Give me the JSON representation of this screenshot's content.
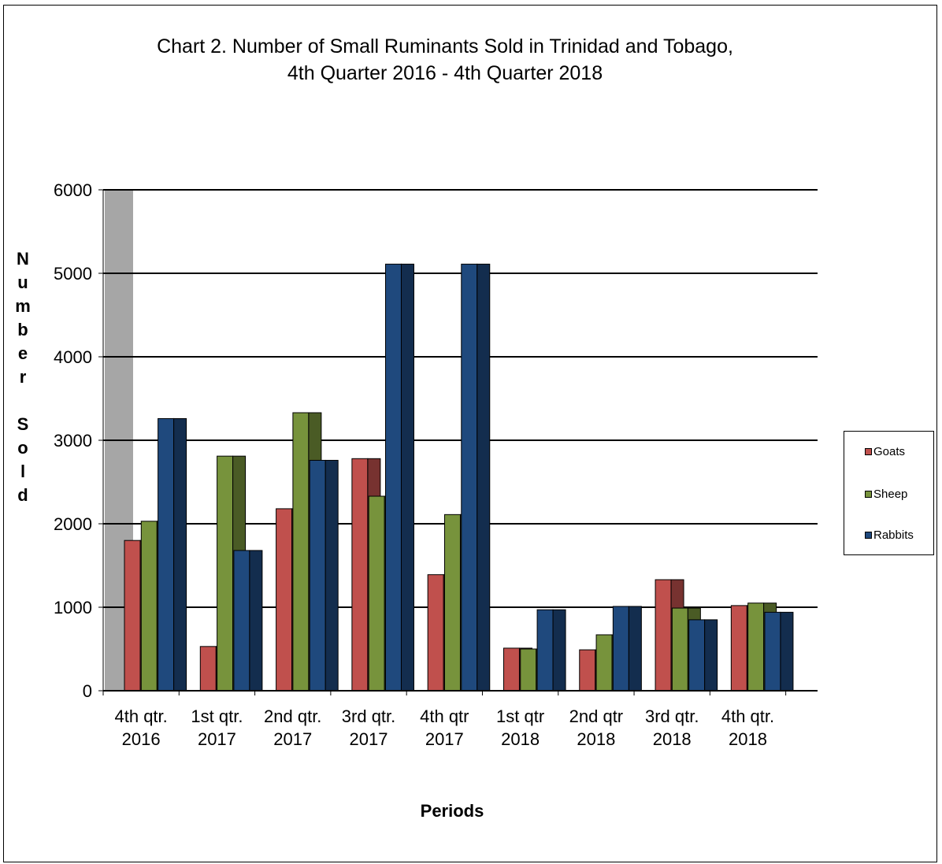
{
  "chart_data": {
    "type": "bar",
    "title_line1": "Chart 2. Number of Small Ruminants Sold in Trinidad and Tobago,",
    "title_line2": "4th Quarter 2016 - 4th Quarter 2018",
    "xlabel": "Periods",
    "ylabel": "Number Sold",
    "ylim": [
      0,
      6000
    ],
    "yticks": [
      0,
      1000,
      2000,
      3000,
      4000,
      5000,
      6000
    ],
    "grid": true,
    "legend_position": "right",
    "categories": [
      [
        "4th qtr.",
        "2016"
      ],
      [
        "1st qtr.",
        "2017"
      ],
      [
        "2nd qtr.",
        "2017"
      ],
      [
        "3rd qtr.",
        "2017"
      ],
      [
        "4th qtr",
        "2017"
      ],
      [
        "1st qtr",
        "2018"
      ],
      [
        "2nd qtr",
        "2018"
      ],
      [
        "3rd qtr.",
        "2018"
      ],
      [
        "4th qtr.",
        "2018"
      ]
    ],
    "series": [
      {
        "name": "Goats",
        "color": "#C0504D",
        "values": [
          1800,
          530,
          2180,
          2780,
          1390,
          510,
          490,
          1330,
          1020
        ]
      },
      {
        "name": "Sheep",
        "color": "#77933C",
        "values": [
          2030,
          2810,
          3330,
          2330,
          2110,
          500,
          670,
          990,
          1050
        ]
      },
      {
        "name": "Rabbits",
        "color": "#1F497D",
        "values": [
          3260,
          1680,
          2760,
          5110,
          5110,
          970,
          1010,
          850,
          940
        ]
      }
    ]
  }
}
